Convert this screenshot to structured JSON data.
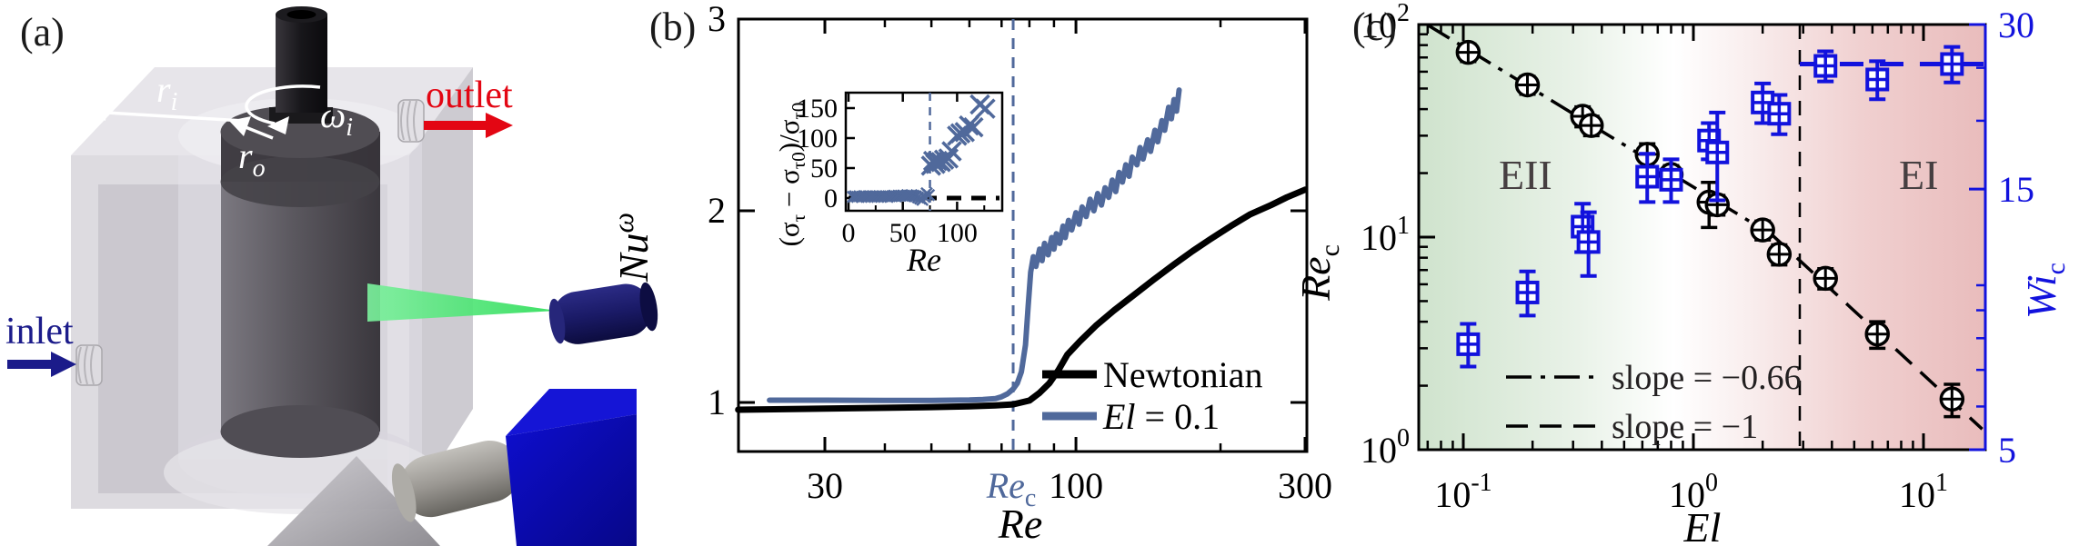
{
  "panel_a": {
    "label": "(a)",
    "inlet_label": "inlet",
    "outlet_label": "outlet",
    "inner_radius": {
      "main": "r",
      "sub": "i"
    },
    "outer_radius": {
      "main": "r",
      "sub": "o"
    },
    "angular_velocity": {
      "main": "ω",
      "sub": "i"
    },
    "colors": {
      "inlet_text": "#1b1b8a",
      "outlet_text": "#e30613",
      "laser_sheet": "#3ee064",
      "laser_body": "#1a1a66",
      "camera_body": "#0b0bbb",
      "lens_gray": "#9a9792",
      "housing_gray": "#d6d3d9",
      "rotor_gray": "#55525a"
    }
  },
  "panel_b": {
    "label": "(b)",
    "ylabel": {
      "main": "Nu",
      "sup": "ω"
    },
    "xlabel": "Re",
    "rec_label": {
      "main": "Re",
      "sub": "c"
    },
    "legend_newtonian": "Newtonian",
    "legend_el": {
      "main": "El",
      "rest": " = 0.1"
    },
    "inset": {
      "ylabel_parts": {
        "p1": "(σ",
        "s1": "τ",
        "p2": " − σ",
        "s2": "τ0",
        "p3": ")/σ",
        "s3": "τ0"
      },
      "xlabel": "Re"
    }
  },
  "panel_c": {
    "label": "(c)",
    "ylabel_left": {
      "main": "Re",
      "sub": "c"
    },
    "ylabel_right": {
      "main": "Wi",
      "sub": "c"
    },
    "xlabel": "El",
    "region_left": "EII",
    "region_right": "EI",
    "slope_legend_1": "slope = −0.66",
    "slope_legend_2": "slope = −1",
    "accent_blue": "#1212dd",
    "region_text_color": "#463f41"
  },
  "chart_data": [
    {
      "id": "b_main",
      "type": "line",
      "xlabel": "Re",
      "ylabel": "Nu^ω",
      "xscale": "log",
      "xlim": [
        19.8,
        300
      ],
      "ylim": [
        0.74,
        3.0
      ],
      "xticks": [
        30,
        100,
        300
      ],
      "xticks_minor": [
        40,
        50,
        60,
        70,
        80,
        90,
        200
      ],
      "yticks": [
        1,
        2,
        3
      ],
      "critical_re": {
        "value": 74,
        "color": "#50699b"
      },
      "legend_position": "lower right",
      "series": [
        {
          "name": "Newtonian",
          "color": "#000000",
          "width": 7,
          "points": [
            [
              19.8,
              0.962
            ],
            [
              30,
              0.968
            ],
            [
              40,
              0.972
            ],
            [
              50,
              0.976
            ],
            [
              60,
              0.98
            ],
            [
              68,
              0.985
            ],
            [
              74,
              0.99
            ],
            [
              80,
              1.01
            ],
            [
              84,
              1.05
            ],
            [
              88,
              1.1
            ],
            [
              92,
              1.17
            ],
            [
              96,
              1.25
            ],
            [
              102,
              1.32
            ],
            [
              110,
              1.4
            ],
            [
              120,
              1.48
            ],
            [
              132,
              1.56
            ],
            [
              145,
              1.64
            ],
            [
              160,
              1.72
            ],
            [
              175,
              1.79
            ],
            [
              190,
              1.85
            ],
            [
              210,
              1.92
            ],
            [
              230,
              1.98
            ],
            [
              255,
              2.03
            ],
            [
              275,
              2.07
            ],
            [
              300,
              2.11
            ]
          ]
        },
        {
          "name": "El = 0.1",
          "color": "#50699b",
          "width": 6,
          "points": [
            [
              23,
              1.012
            ],
            [
              30,
              1.012
            ],
            [
              40,
              1.011
            ],
            [
              50,
              1.011
            ],
            [
              55,
              1.012
            ],
            [
              60,
              1.013
            ],
            [
              64,
              1.015
            ],
            [
              68,
              1.02
            ],
            [
              70,
              1.03
            ],
            [
              72,
              1.045
            ],
            [
              74,
              1.07
            ],
            [
              75.5,
              1.1
            ],
            [
              77,
              1.16
            ],
            [
              78.5,
              1.3
            ],
            [
              79.5,
              1.5
            ],
            [
              80.5,
              1.68
            ],
            [
              81.5,
              1.76
            ],
            [
              82.5,
              1.71
            ],
            [
              84,
              1.8
            ],
            [
              85,
              1.74
            ],
            [
              86,
              1.83
            ],
            [
              87.5,
              1.77
            ],
            [
              89,
              1.86
            ],
            [
              90,
              1.8
            ],
            [
              91,
              1.88
            ],
            [
              92.5,
              1.83
            ],
            [
              94,
              1.92
            ],
            [
              95,
              1.86
            ],
            [
              96.5,
              1.95
            ],
            [
              98,
              1.9
            ],
            [
              100,
              1.99
            ],
            [
              101.5,
              1.93
            ],
            [
              103,
              2.02
            ],
            [
              105,
              1.97
            ],
            [
              107,
              2.06
            ],
            [
              109,
              2.0
            ],
            [
              111,
              2.09
            ],
            [
              113,
              2.03
            ],
            [
              115,
              2.12
            ],
            [
              117,
              2.07
            ],
            [
              119,
              2.16
            ],
            [
              121,
              2.1
            ],
            [
              123,
              2.2
            ],
            [
              125,
              2.15
            ],
            [
              127,
              2.24
            ],
            [
              129,
              2.18
            ],
            [
              131,
              2.28
            ],
            [
              134,
              2.24
            ],
            [
              136,
              2.33
            ],
            [
              138,
              2.27
            ],
            [
              141,
              2.37
            ],
            [
              143,
              2.31
            ],
            [
              146,
              2.42
            ],
            [
              148,
              2.36
            ],
            [
              151,
              2.47
            ],
            [
              153,
              2.42
            ],
            [
              156,
              2.54
            ],
            [
              158,
              2.48
            ],
            [
              160,
              2.58
            ],
            [
              162,
              2.52
            ],
            [
              164,
              2.63
            ]
          ]
        }
      ]
    },
    {
      "id": "b_inset",
      "type": "scatter",
      "ylabel": "(σ_τ − σ_τ0)/σ_τ0",
      "xlabel": "Re",
      "xlim": [
        0,
        144
      ],
      "ylim": [
        -21,
        175
      ],
      "xticks": [
        0,
        50,
        100
      ],
      "xticks_minor": [
        25,
        75,
        125
      ],
      "yticks": [
        0,
        50,
        100,
        150
      ],
      "zero_line_y": 0,
      "critical_re": 75,
      "marker": "x",
      "color": "#50699b",
      "points_low": [
        [
          4,
          2
        ],
        [
          6,
          3
        ],
        [
          8,
          2
        ],
        [
          10,
          3
        ],
        [
          12,
          2
        ],
        [
          14,
          3
        ],
        [
          16,
          3
        ],
        [
          18,
          2
        ],
        [
          20,
          3
        ],
        [
          22,
          3
        ],
        [
          24,
          2
        ],
        [
          26,
          3
        ],
        [
          28,
          3
        ],
        [
          30,
          2
        ],
        [
          32,
          3
        ],
        [
          34,
          3
        ],
        [
          36,
          2
        ],
        [
          38,
          3
        ],
        [
          40,
          3
        ],
        [
          42,
          4
        ],
        [
          44,
          3
        ],
        [
          46,
          4
        ],
        [
          48,
          4
        ],
        [
          50,
          4
        ],
        [
          52,
          3
        ],
        [
          54,
          5
        ],
        [
          56,
          4
        ],
        [
          58,
          5
        ],
        [
          60,
          4
        ],
        [
          62,
          3
        ],
        [
          64,
          1
        ],
        [
          66,
          -1
        ],
        [
          68,
          -3
        ],
        [
          70,
          2
        ],
        [
          72,
          8
        ],
        [
          74,
          5
        ]
      ],
      "points_high": [
        [
          76,
          54
        ],
        [
          78,
          62
        ],
        [
          80,
          57
        ],
        [
          82,
          62
        ],
        [
          85,
          60
        ],
        [
          88,
          64
        ],
        [
          92,
          66
        ],
        [
          95,
          78
        ],
        [
          100,
          104
        ],
        [
          103,
          108
        ],
        [
          107,
          110
        ],
        [
          111,
          121
        ],
        [
          115,
          118
        ],
        [
          121,
          156
        ],
        [
          126,
          149
        ]
      ]
    },
    {
      "id": "c_dual",
      "type": "scatter",
      "xlabel": "El",
      "ylabel_left": "Re_c",
      "ylabel_right": "Wi_c",
      "xscale": "log",
      "yscale": "log",
      "xlim": [
        0.065,
        18.5
      ],
      "ylim_left": [
        1,
        100
      ],
      "ylim_right": [
        5,
        30
      ],
      "xticks": [
        0.1,
        1,
        10
      ],
      "xticks_minor": [
        0.07,
        0.08,
        0.09,
        0.2,
        0.3,
        0.4,
        0.5,
        0.6,
        0.7,
        0.8,
        0.9,
        2,
        3,
        4,
        5,
        6,
        7,
        8,
        9
      ],
      "yticks_left": [
        1,
        10,
        100
      ],
      "yticks_left_minor": [
        2,
        3,
        4,
        5,
        6,
        7,
        8,
        9,
        20,
        30,
        40,
        50,
        60,
        70,
        80,
        90
      ],
      "yticks_right": [
        5,
        15,
        30
      ],
      "yticks_right_minor": [
        6,
        7,
        8,
        9,
        10,
        20,
        25
      ],
      "regime_boundary_el": 2.9,
      "wi_plateau": 25.4,
      "fit_lines": [
        {
          "label": "slope = −0.66",
          "style": "dashdot",
          "coeff": 17.2,
          "exponent": -0.66,
          "el_range": [
            0.07,
            2.2
          ]
        },
        {
          "label": "slope = −1",
          "style": "dashed",
          "coeff": 22.5,
          "exponent": -1,
          "el_range": [
            2.2,
            18
          ]
        }
      ],
      "series": [
        {
          "name": "Re_c",
          "axis": "left",
          "color": "#000000",
          "marker": "circle-plus",
          "points": [
            [
              0.105,
              74,
              7
            ],
            [
              0.19,
              52,
              5
            ],
            [
              0.33,
              37,
              4
            ],
            [
              0.36,
              33.5,
              3.5
            ],
            [
              0.63,
              24.5,
              3
            ],
            [
              0.8,
              19.7,
              2
            ],
            [
              1.17,
              14.6,
              3.5
            ],
            [
              1.27,
              14.2,
              1.5
            ],
            [
              2.0,
              10.8,
              1.1
            ],
            [
              2.36,
              8.3,
              0.9
            ],
            [
              3.75,
              6.4,
              0.7
            ],
            [
              6.3,
              3.5,
              0.5
            ],
            [
              13.3,
              1.73,
              0.3
            ]
          ]
        },
        {
          "name": "Wi_c",
          "axis": "right",
          "color": "#1212dd",
          "marker": "square-plus",
          "points": [
            [
              0.105,
              7.8,
              0.7
            ],
            [
              0.19,
              9.7,
              0.9
            ],
            [
              0.33,
              12.8,
              1.3
            ],
            [
              0.35,
              12.0,
              1.6
            ],
            [
              0.63,
              15.8,
              1.6
            ],
            [
              0.8,
              15.6,
              1.4
            ],
            [
              1.17,
              18.4,
              1.4
            ],
            [
              1.27,
              17.5,
              3.2
            ],
            [
              2.0,
              21.6,
              1.8
            ],
            [
              2.36,
              20.6,
              1.7
            ],
            [
              3.75,
              25.2,
              1.6
            ],
            [
              6.3,
              23.8,
              1.9
            ],
            [
              13.3,
              25.4,
              1.9
            ]
          ]
        }
      ],
      "background": {
        "left_color": "#cfe3cd",
        "mid_color": "#ffffff",
        "right_color": "#e9bcbc"
      }
    }
  ]
}
